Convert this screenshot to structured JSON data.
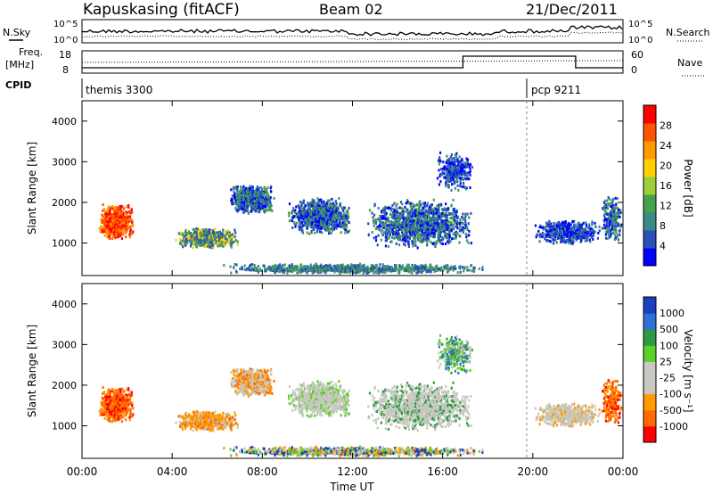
{
  "header": {
    "title": "Kapuskasing (fitACF)",
    "beam": "Beam 02",
    "date": "21/Dec/2011"
  },
  "noise_panel": {
    "left_label": "N.Sky",
    "right_label": "N.Search",
    "tick_top": "10^5",
    "tick_bottom": "10^0"
  },
  "freq_panel": {
    "label_line1": "Freq.",
    "label_line2": "[MHz]",
    "left_ticks": [
      "18",
      "8"
    ],
    "right_ticks": [
      "60",
      "0"
    ],
    "right_label": "Nave"
  },
  "cpid": {
    "label": "CPID",
    "programs": [
      {
        "name": "themis 3300",
        "start_hour": 0
      },
      {
        "name": "pcp 9211",
        "start_hour": 20
      }
    ]
  },
  "x_axis": {
    "label": "Time UT",
    "ticks": [
      "00:00",
      "04:00",
      "08:00",
      "12:00",
      "16:00",
      "20:00",
      "00:00"
    ]
  },
  "colors": {
    "power_scale": [
      "#0000ff",
      "#2a4fb8",
      "#3a8a8a",
      "#47a04a",
      "#9ccf3a",
      "#ffd000",
      "#ff9900",
      "#ff5500",
      "#ff0000"
    ],
    "velocity_scale": [
      "#1a3fbf",
      "#2e6fd8",
      "#2f9a45",
      "#5ccf2a",
      "#c8c8c0",
      "#c8c8c0",
      "#ff9a00",
      "#ff6a00",
      "#ff0000"
    ]
  },
  "chart_data": [
    {
      "type": "heatmap",
      "name": "power",
      "ylabel": "Slant Range [km]",
      "yticks": [
        1000,
        2000,
        3000,
        4000
      ],
      "ylim": [
        200,
        4500
      ],
      "xlim": [
        0,
        24
      ],
      "colorbar": {
        "label": "Power [dB]",
        "ticks": [
          "4",
          "8",
          "12",
          "16",
          "20",
          "24",
          "28"
        ]
      }
    },
    {
      "type": "heatmap",
      "name": "velocity",
      "ylabel": "Slant Range [km]",
      "yticks": [
        1000,
        2000,
        3000,
        4000
      ],
      "ylim": [
        200,
        4500
      ],
      "xlim": [
        0,
        24
      ],
      "colorbar": {
        "label": "Velocity [m s⁻¹]",
        "ticks": [
          "1000",
          "500",
          "100",
          "25",
          "-25",
          "-100",
          "-500",
          "-1000"
        ]
      }
    }
  ]
}
